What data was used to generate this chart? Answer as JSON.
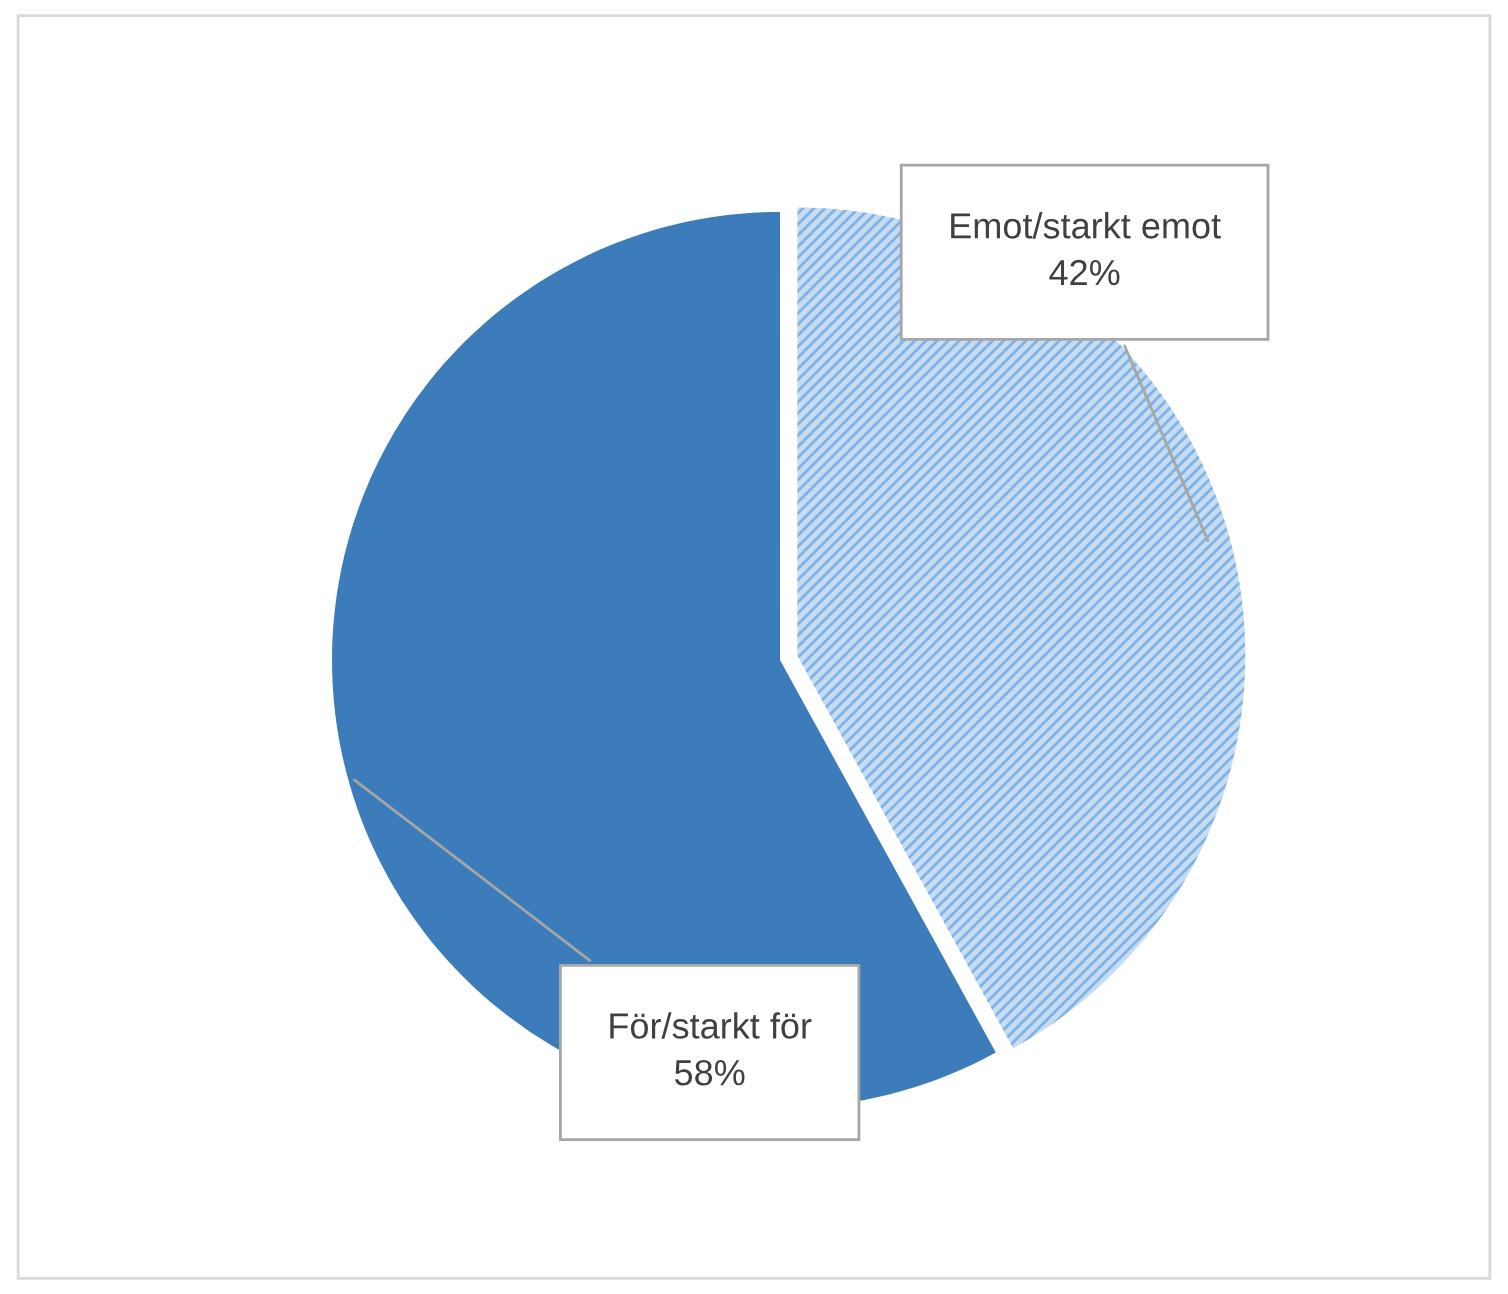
{
  "chart_data": {
    "type": "pie",
    "categories": [
      "Emot/starkt emot",
      "För/starkt för"
    ],
    "values": [
      42,
      58
    ],
    "value_labels": [
      "42%",
      "58%"
    ],
    "colors": [
      "#c5dcf2",
      "#3d7cba"
    ],
    "legend": false
  }
}
